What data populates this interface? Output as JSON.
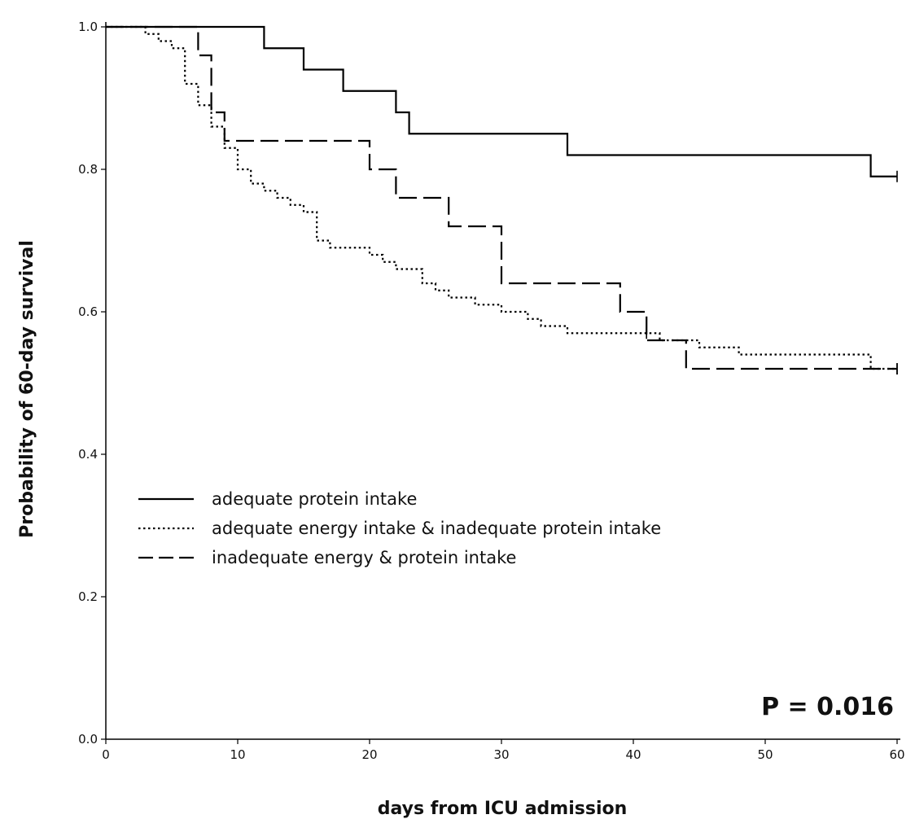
{
  "chart_data": {
    "type": "line",
    "xlabel": "days from ICU admission",
    "ylabel": "Probability of 60-day survival",
    "xlim": [
      0,
      60
    ],
    "ylim": [
      0.0,
      1.0
    ],
    "xticks": [
      "0",
      "10",
      "20",
      "30",
      "40",
      "50",
      "60"
    ],
    "yticks": [
      "0.0",
      "0.2",
      "0.4",
      "0.6",
      "0.8",
      "1.0"
    ],
    "grid": false,
    "legend_position": "middle-left",
    "annotation": "P = 0.016",
    "series": [
      {
        "name": "adequate protein intake",
        "style": "solid",
        "color": "#000000",
        "x": [
          0,
          12,
          15,
          18,
          21,
          22,
          23,
          35,
          58,
          60
        ],
        "y": [
          1.0,
          0.97,
          0.94,
          0.91,
          0.91,
          0.88,
          0.85,
          0.82,
          0.79,
          0.79
        ],
        "censored": [
          [
            60,
            0.79
          ]
        ]
      },
      {
        "name": "adequate energy intake & inadequate protein intake",
        "style": "dotted",
        "color": "#000000",
        "x": [
          0,
          3,
          4,
          5,
          6,
          7,
          8,
          9,
          10,
          11,
          12,
          13,
          14,
          15,
          16,
          17,
          18,
          20,
          21,
          22,
          24,
          25,
          26,
          28,
          30,
          32,
          33,
          35,
          40,
          42,
          45,
          48,
          58,
          60
        ],
        "y": [
          1.0,
          0.99,
          0.98,
          0.97,
          0.92,
          0.89,
          0.86,
          0.83,
          0.8,
          0.78,
          0.77,
          0.76,
          0.75,
          0.74,
          0.7,
          0.69,
          0.69,
          0.68,
          0.67,
          0.66,
          0.64,
          0.63,
          0.62,
          0.61,
          0.6,
          0.59,
          0.58,
          0.57,
          0.57,
          0.56,
          0.55,
          0.54,
          0.52,
          0.52
        ],
        "censored": [
          [
            41,
            0.57
          ],
          [
            60,
            0.52
          ]
        ]
      },
      {
        "name": "inadequate energy & protein intake",
        "style": "dashed",
        "color": "#000000",
        "x": [
          0,
          7,
          8,
          9,
          20,
          22,
          26,
          30,
          39,
          41,
          44,
          60
        ],
        "y": [
          1.0,
          0.96,
          0.88,
          0.84,
          0.8,
          0.76,
          0.72,
          0.64,
          0.6,
          0.56,
          0.52,
          0.52
        ],
        "censored": [
          [
            60,
            0.52
          ]
        ]
      }
    ]
  }
}
